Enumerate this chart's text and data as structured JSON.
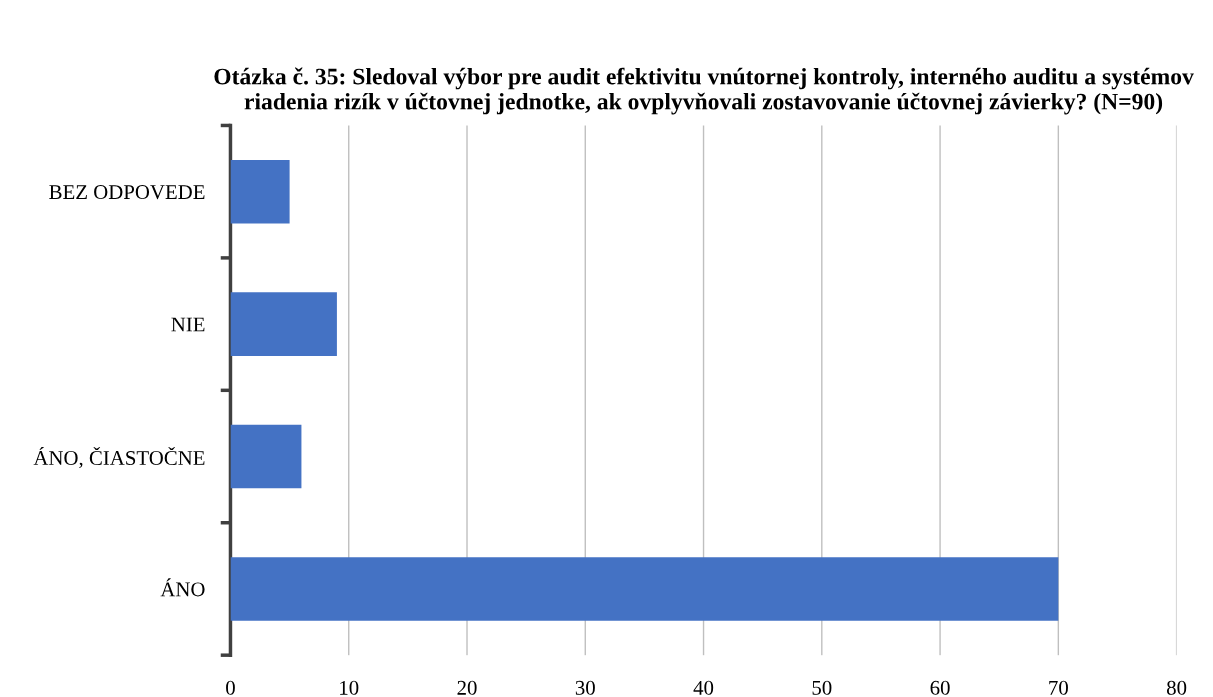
{
  "chart_data": {
    "type": "bar",
    "orientation": "horizontal",
    "title": "Otázka č. 35: Sledoval výbor pre audit efektivitu vnútornej kontroly, interného auditu a systémov riadenia rizík v účtovnej jednotke, ak ovplyvňovali zostavovanie účtovnej závierky? (N=90)",
    "categories": [
      "BEZ ODPOVEDE",
      "NIE",
      "ÁNO, ČIASTOČNE",
      "ÁNO"
    ],
    "values": [
      5,
      9,
      6,
      70
    ],
    "color": "#4472c4",
    "xlim": [
      0,
      80
    ],
    "xticks": [
      0,
      10,
      20,
      30,
      40,
      50,
      60,
      70,
      80
    ],
    "grid": "x"
  }
}
